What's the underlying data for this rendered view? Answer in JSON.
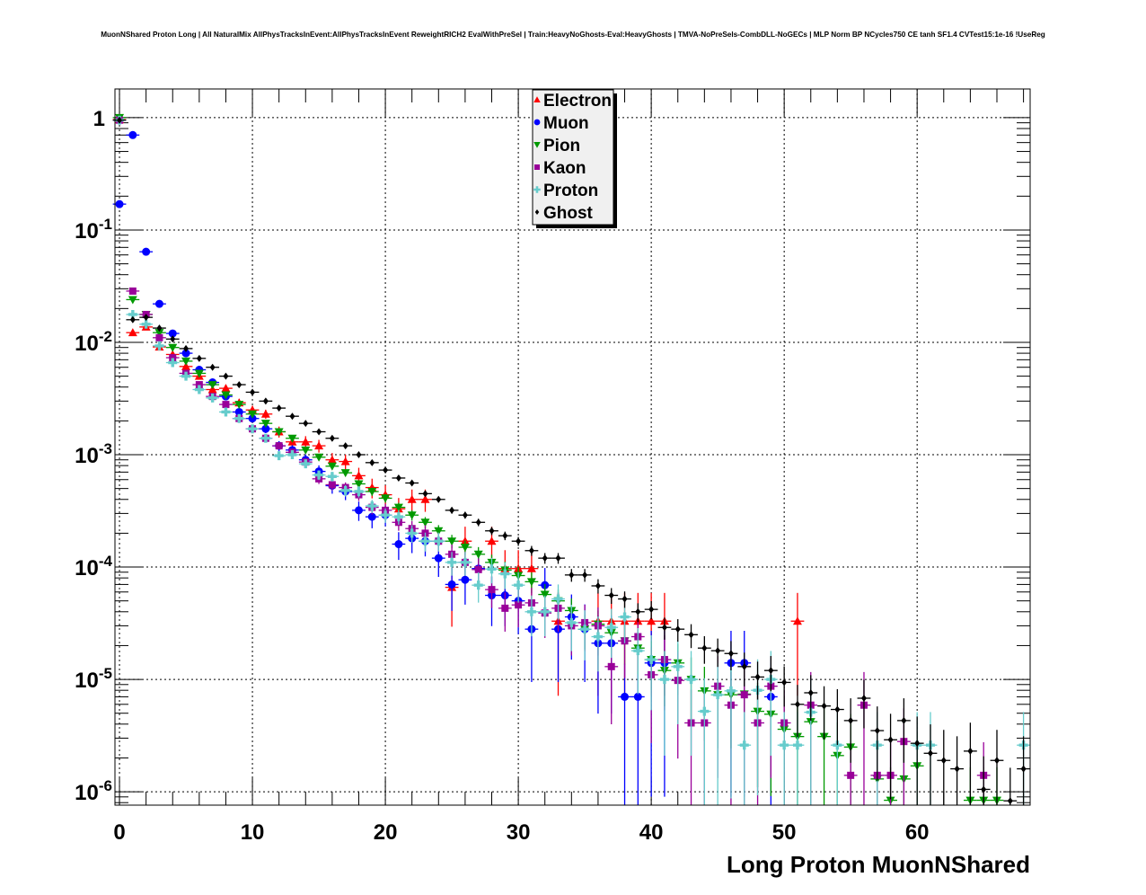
{
  "chart_data": {
    "type": "scatter",
    "title": "MuonNShared Proton Long | All NaturalMix AllPhysTracksInEvent:AllPhysTracksInEvent ReweightRICH2 EvalWithPreSel | Train:HeavyNoGhosts-Eval:HeavyGhosts | TMVA-NoPreSels-CombDLL-NoGECs | MLP Norm BP NCycles750 CE tanh SF1.4 CVTest15:1e-16 !UseReg",
    "xlabel": "Long Proton MuonNShared",
    "ylabel": "",
    "xlim": [
      -0.34,
      68.5
    ],
    "ylim": [
      7.6e-07,
      1.8
    ],
    "yscale": "log",
    "grid": true,
    "legend_position": "top-center",
    "x_ticks": [
      0,
      10,
      20,
      30,
      40,
      50,
      60
    ],
    "x_tick_labels": [
      "0",
      "10",
      "20",
      "30",
      "40",
      "50",
      "60"
    ],
    "y_ticks": [
      1,
      0.1,
      0.01,
      0.001,
      0.0001,
      1e-05,
      1e-06
    ],
    "y_tick_labels": [
      {
        "base": "1",
        "exp": ""
      },
      {
        "base": "10",
        "exp": "-1"
      },
      {
        "base": "10",
        "exp": "-2"
      },
      {
        "base": "10",
        "exp": "-3"
      },
      {
        "base": "10",
        "exp": "-4"
      },
      {
        "base": "10",
        "exp": "-5"
      },
      {
        "base": "10",
        "exp": "-6"
      }
    ],
    "x": [
      0,
      1,
      2,
      3,
      4,
      5,
      6,
      7,
      8,
      9,
      10,
      11,
      12,
      13,
      14,
      15,
      16,
      17,
      18,
      19,
      20,
      21,
      22,
      23,
      24,
      25,
      26,
      27,
      28,
      29,
      30,
      31,
      32,
      33,
      34,
      35,
      36,
      37,
      38,
      39,
      40,
      41,
      42,
      43,
      44,
      45,
      46,
      47,
      48,
      49,
      50,
      51,
      52,
      53,
      54,
      55,
      56,
      57,
      58,
      59,
      60,
      61,
      62,
      63,
      64,
      65,
      66,
      67,
      68
    ],
    "series": [
      {
        "name": "Electron",
        "color": "#ff0000",
        "marker": "triangle-up",
        "values": [
          0.96,
          0.0122,
          0.0137,
          0.0091,
          0.0078,
          0.0061,
          0.005,
          0.0038,
          0.0039,
          0.0029,
          0.0025,
          0.0023,
          0.0016,
          0.0013,
          0.0013,
          0.0012,
          0.0009,
          0.00087,
          0.00065,
          0.00051,
          0.00044,
          0.00033,
          0.0004,
          0.0004,
          null,
          6.6e-05,
          0.00017,
          null,
          0.00017,
          9.7e-05,
          9.7e-05,
          9.7e-05,
          null,
          3.3e-05,
          null,
          null,
          3.3e-05,
          3.3e-05,
          3.3e-05,
          3.3e-05,
          3.3e-05,
          3.3e-05,
          null,
          null,
          null,
          null,
          null,
          null,
          null,
          null,
          null,
          3.3e-05,
          null,
          null,
          null,
          null,
          null,
          null,
          null,
          null,
          null,
          null,
          null,
          null,
          null,
          null,
          null,
          null,
          null
        ]
      },
      {
        "name": "Muon",
        "color": "#0000ff",
        "marker": "circle",
        "values": [
          0.17,
          0.7,
          0.064,
          0.022,
          0.012,
          0.008,
          0.0057,
          0.0044,
          0.0033,
          0.0024,
          0.0021,
          0.0017,
          0.0012,
          0.0011,
          0.0009,
          0.00071,
          0.00053,
          0.00047,
          0.00032,
          0.00028,
          0.00029,
          0.00016,
          0.00018,
          0.00017,
          0.00012,
          7e-05,
          7.7e-05,
          9.7e-05,
          5.6e-05,
          5.6e-05,
          5e-05,
          2.8e-05,
          6.9e-05,
          2.8e-05,
          3.6e-05,
          2.8e-05,
          2.1e-05,
          2.1e-05,
          7e-06,
          7e-06,
          1.4e-05,
          1.4e-05,
          null,
          null,
          null,
          null,
          1.4e-05,
          1.4e-05,
          null,
          7e-06,
          null,
          null,
          null,
          null,
          null,
          null,
          null,
          null,
          null,
          null,
          null,
          null,
          null,
          null,
          null,
          null,
          null,
          null,
          null
        ]
      },
      {
        "name": "Pion",
        "color": "#009900",
        "marker": "triangle-down",
        "values": [
          1.0,
          0.024,
          0.0177,
          0.0122,
          0.009,
          0.0068,
          0.0053,
          0.0042,
          0.0034,
          0.0028,
          0.0023,
          0.0019,
          0.0016,
          0.0014,
          0.0011,
          0.00095,
          0.00079,
          0.00069,
          0.00055,
          0.00047,
          0.00041,
          0.00034,
          0.00029,
          0.00025,
          0.00021,
          0.00017,
          0.00015,
          0.00013,
          0.00011,
          9.4e-05,
          8.4e-05,
          7.4e-05,
          5.7e-05,
          5e-05,
          4.1e-05,
          2.8e-05,
          3.1e-05,
          2.6e-05,
          2.2e-05,
          1.9e-05,
          1.5e-05,
          1.2e-05,
          1.4e-05,
          1e-05,
          7.9e-06,
          7.3e-06,
          7.3e-06,
          7.4e-06,
          5.2e-06,
          4.9e-06,
          3.6e-06,
          3.1e-06,
          4.2e-06,
          3.1e-06,
          2.1e-06,
          2.5e-06,
          null,
          1.3e-06,
          8.4e-07,
          1.3e-06,
          1.7e-06,
          null,
          null,
          null,
          8.4e-07,
          8.4e-07,
          8.4e-07,
          null,
          null
        ]
      },
      {
        "name": "Kaon",
        "color": "#990099",
        "marker": "square",
        "values": [
          0.95,
          0.0286,
          0.0177,
          0.011,
          0.0073,
          0.0053,
          0.0042,
          0.0033,
          0.0028,
          0.0021,
          0.0017,
          0.0014,
          0.0012,
          0.00105,
          0.00086,
          0.00061,
          0.00054,
          0.00051,
          0.00044,
          0.00034,
          0.00032,
          0.00025,
          0.00022,
          0.0002,
          0.00017,
          0.00013,
          0.00011,
          9.5e-05,
          6.3e-05,
          4.3e-05,
          4.6e-05,
          4.8e-05,
          3.9e-05,
          4.3e-05,
          3e-05,
          3.2e-05,
          3e-05,
          1.3e-05,
          2.2e-05,
          2.4e-05,
          1.1e-05,
          1.5e-05,
          9.8e-06,
          4.1e-06,
          4.1e-06,
          8.7e-06,
          5.9e-06,
          7.3e-06,
          4.1e-06,
          8.7e-06,
          4.1e-06,
          null,
          5.9e-06,
          null,
          null,
          1.4e-06,
          5.9e-06,
          1.4e-06,
          1.4e-06,
          2.8e-06,
          null,
          null,
          null,
          null,
          null,
          1.4e-06,
          null,
          null,
          null
        ]
      },
      {
        "name": "Proton",
        "color": "#66cccc",
        "marker": "cross",
        "values": [
          0.95,
          0.0177,
          0.0145,
          0.0093,
          0.0066,
          0.005,
          0.0038,
          0.0032,
          0.0024,
          0.0021,
          0.0017,
          0.0014,
          0.00098,
          0.001,
          0.00083,
          0.00066,
          0.00064,
          0.00048,
          0.00047,
          0.00035,
          0.00029,
          0.00028,
          0.0002,
          0.00017,
          0.00017,
          0.00011,
          0.00011,
          6.9e-05,
          9.6e-05,
          8.7e-05,
          6.9e-05,
          4e-05,
          4e-05,
          5.2e-05,
          3.2e-05,
          2.8e-05,
          2.4e-05,
          2.9e-05,
          3.6e-05,
          1.8e-05,
          1.5e-05,
          1e-05,
          1.3e-05,
          1e-05,
          5.2e-06,
          7.3e-06,
          7.9e-06,
          2.6e-06,
          8e-06,
          1e-05,
          2.6e-06,
          2.6e-06,
          5.1e-06,
          null,
          2.6e-06,
          null,
          null,
          2.6e-06,
          null,
          null,
          2.6e-06,
          2.6e-06,
          null,
          null,
          null,
          null,
          null,
          null,
          2.6e-06
        ]
      },
      {
        "name": "Ghost",
        "color": "#000000",
        "marker": "diamond",
        "values": [
          0.95,
          0.0159,
          0.0167,
          0.0134,
          0.0107,
          0.0088,
          0.0072,
          0.006,
          0.005,
          0.0042,
          0.0036,
          0.003,
          0.0026,
          0.0022,
          0.0019,
          0.0016,
          0.0014,
          0.0012,
          0.001,
          0.00085,
          0.00073,
          0.00062,
          0.00056,
          0.00045,
          0.0004,
          0.00032,
          0.00029,
          0.00025,
          0.00021,
          0.00019,
          0.00017,
          0.00014,
          0.00012,
          0.00012,
          8.5e-05,
          8.5e-05,
          6.8e-05,
          5.6e-05,
          5.2e-05,
          4e-05,
          4.2e-05,
          2.9e-05,
          2.8e-05,
          2.5e-05,
          1.9e-05,
          1.8e-05,
          1.7e-05,
          1.3e-05,
          1.05e-05,
          1.2e-05,
          9.4e-06,
          6e-06,
          7.6e-06,
          5.8e-06,
          5.4e-06,
          4.3e-06,
          6.8e-06,
          3.5e-06,
          2.9e-06,
          4.3e-06,
          2.7e-06,
          2.2e-06,
          1.9e-06,
          1.6e-06,
          2.3e-06,
          1.05e-06,
          1.9e-06,
          8.3e-07,
          1.6e-06
        ]
      }
    ]
  }
}
